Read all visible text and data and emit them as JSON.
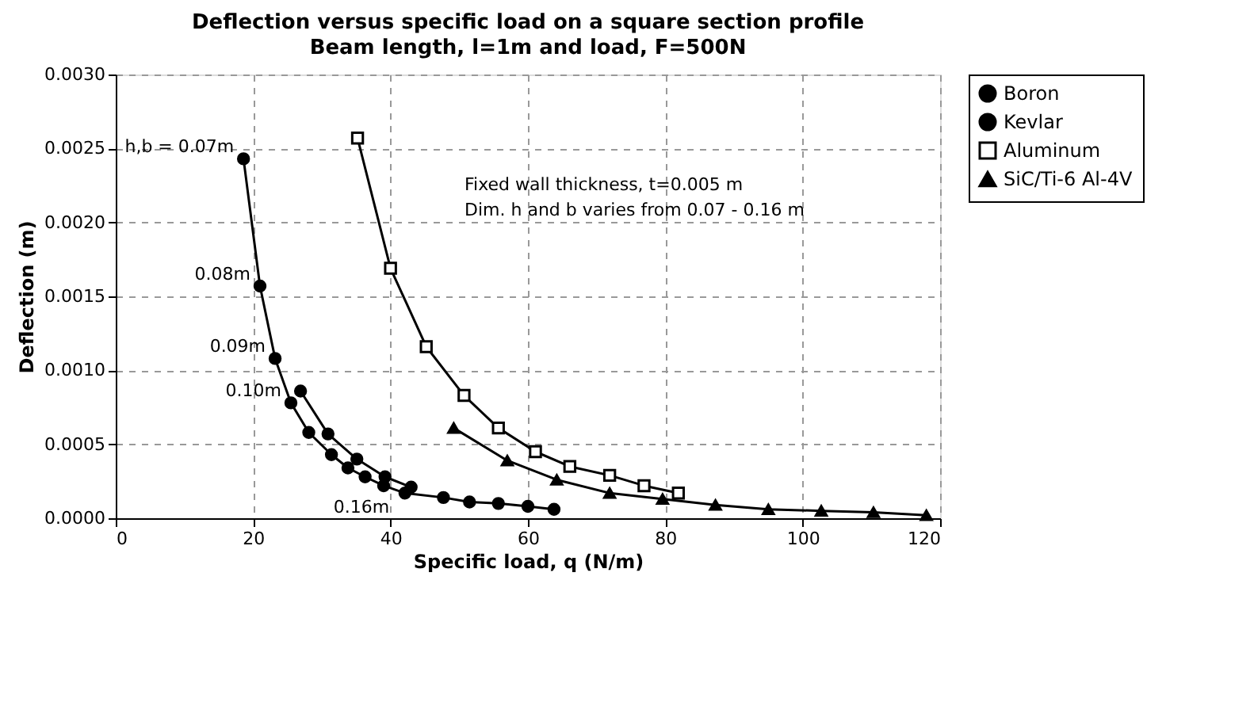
{
  "chart_data": {
    "type": "line",
    "title": "Deflection versus specific load on a square section profile",
    "subtitle": "Beam length, l=1m and load, F=500N",
    "xlabel": "Specific load,  q (N/m)",
    "ylabel": "Deflection (m)",
    "xlim": [
      0,
      120
    ],
    "xticks": [
      0,
      20,
      40,
      60,
      80,
      100,
      120
    ],
    "ylim": [
      0,
      0.003
    ],
    "yticks": [
      {
        "value": 0,
        "label": "0.0000"
      },
      {
        "value": 0.0005,
        "label": "0.0005"
      },
      {
        "value": 0.001,
        "label": "0.0010"
      },
      {
        "value": 0.0015,
        "label": "0.0015"
      },
      {
        "value": 0.002,
        "label": "0.0020"
      },
      {
        "value": 0.0025,
        "label": "0.0025"
      },
      {
        "value": 0.003,
        "label": "0.0030"
      }
    ],
    "grid": true,
    "legend": "right",
    "series": [
      {
        "name": "Boron",
        "color": "#000000",
        "marker": "circle",
        "x": [
          26.9,
          30.9,
          35.1,
          39.2,
          43.0
        ],
        "values": [
          0.00086,
          0.00057,
          0.0004,
          0.00028,
          0.00021
        ]
      },
      {
        "name": "Kevlar",
        "color": "#000000",
        "marker": "circle",
        "x": [
          18.6,
          21.0,
          23.2,
          25.5,
          28.1,
          31.4,
          33.8,
          36.3,
          39.0,
          42.1,
          47.7,
          51.5,
          55.7,
          60.0,
          63.8
        ],
        "values": [
          0.00243,
          0.00157,
          0.00108,
          0.00078,
          0.00058,
          0.00043,
          0.00034,
          0.00028,
          0.00022,
          0.00017,
          0.00014,
          0.00011,
          0.0001,
          8e-05,
          6e-05
        ]
      },
      {
        "name": "Aluminum",
        "color": "#000000",
        "marker": "square",
        "x": [
          35.2,
          40.0,
          45.2,
          50.7,
          55.7,
          61.1,
          66.1,
          71.9,
          76.9,
          81.9
        ],
        "values": [
          0.00257,
          0.00169,
          0.00116,
          0.00083,
          0.00061,
          0.00045,
          0.00035,
          0.00029,
          0.00022,
          0.00017
        ]
      },
      {
        "name": "SiC/Ti-6 Al-4V",
        "color": "#000000",
        "marker": "triangle",
        "x": [
          49.2,
          57.0,
          64.2,
          71.9,
          79.6,
          87.3,
          95.0,
          102.7,
          110.3,
          118.0
        ],
        "values": [
          0.00061,
          0.00039,
          0.00026,
          0.00017,
          0.00013,
          9e-05,
          6e-05,
          5e-05,
          4e-05,
          2e-05
        ]
      }
    ],
    "annotations": [
      {
        "text": "h,b = 0.07m",
        "x": 18.6,
        "y": 0.00243
      },
      {
        "text": "0.08m",
        "x": 21.0,
        "y": 0.00157
      },
      {
        "text": "0.09m",
        "x": 23.2,
        "y": 0.00108
      },
      {
        "text": "0.10m",
        "x": 25.5,
        "y": 0.00078
      },
      {
        "text": "0.16m",
        "x": 39.0,
        "y": 0.00022
      },
      "Fixed wall thickness, t=0.005 m",
      "Dim. h and b varies from 0.07 - 0.16 m"
    ]
  }
}
